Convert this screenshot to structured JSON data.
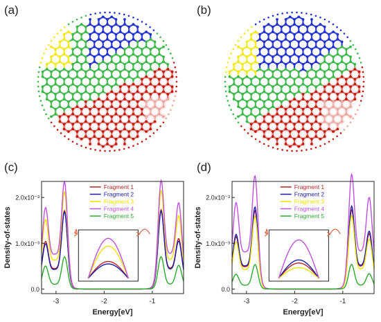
{
  "panels": {
    "a": "(a)",
    "b": "(b)",
    "c": "(c)",
    "d": "(d)"
  },
  "colors": {
    "fragment_1": "#b22222",
    "fragment_2": "#1a1aa8",
    "fragment_3": "#f0e000",
    "fragment_4": "#c050e0",
    "fragment_5": "#2aa82a",
    "carbon_blue": "#1f2fd0",
    "carbon_green": "#3cb84a",
    "carbon_red": "#c01a10",
    "carbon_yellow": "#f2e81a",
    "carbon_pink": "#e8a8a0"
  },
  "chart_data": [
    {
      "type": "line",
      "panel": "(c)",
      "xlabel": "Energy[eV]",
      "ylabel": "Density-of-states",
      "xlim": [
        -3.3,
        -0.35
      ],
      "ylim": [
        -0.0001,
        0.00235
      ],
      "xticks": [
        -3,
        -2,
        -1
      ],
      "xtick_labels": [
        "-3",
        "-2",
        "-1"
      ],
      "yticks": [
        0,
        0.001,
        0.002
      ],
      "ytick_labels": [
        "0.0",
        "1.0x10⁻³",
        "2.0x10⁻³"
      ],
      "legend_position": "top-right",
      "peaks_x": [
        -3.22,
        -2.82,
        -0.82,
        -0.45
      ],
      "series": [
        {
          "name": "Fragment 1",
          "peaks": [
            0.0008,
            0.00152,
            0.00152,
            0.0008
          ],
          "plateau": 0.00044,
          "inset_height": 0.55
        },
        {
          "name": "Fragment 2",
          "peaks": [
            0.00076,
            0.0015,
            0.0015,
            0.00076
          ],
          "plateau": 0.00042,
          "inset_height": 0.47
        },
        {
          "name": "Fragment 3",
          "peaks": [
            0.00118,
            0.00185,
            0.00185,
            0.00118
          ],
          "plateau": 0.00062,
          "inset_height": 1.05
        },
        {
          "name": "Fragment 4",
          "peaks": [
            0.00137,
            0.00201,
            0.00201,
            0.00137
          ],
          "plateau": 0.00075,
          "inset_height": 1.3
        },
        {
          "name": "Fragment 5",
          "peaks": [
            0.00045,
            0.00066,
            0.00066,
            0.00045
          ],
          "plateau": 0.0001,
          "inset_height": 0.0
        }
      ]
    },
    {
      "type": "line",
      "panel": "(d)",
      "xlabel": "Energy[eV]",
      "ylabel": "Density-of-states",
      "xlim": [
        -3.3,
        -0.35
      ],
      "ylim": [
        -0.0001,
        0.00235
      ],
      "xticks": [
        -3,
        -2,
        -1
      ],
      "xtick_labels": [
        "-3",
        "-2",
        "-1"
      ],
      "yticks": [
        0,
        0.001,
        0.002
      ],
      "ytick_labels": [
        "0.0",
        "1.0x10⁻³",
        "2.0x10⁻³"
      ],
      "legend_position": "top-right",
      "peaks_x": [
        -3.22,
        -2.82,
        -0.82,
        -0.45
      ],
      "series": [
        {
          "name": "Fragment 1",
          "peaks": [
            0.00088,
            0.0015,
            0.0015,
            0.00088
          ],
          "plateau": 0.00048,
          "inset_height": 0.5
        },
        {
          "name": "Fragment 2",
          "peaks": [
            0.00092,
            0.00157,
            0.00157,
            0.00092
          ],
          "plateau": 0.0005,
          "inset_height": 0.6
        },
        {
          "name": "Fragment 3",
          "peaks": [
            0.0008,
            0.0014,
            0.0014,
            0.0008
          ],
          "plateau": 0.00042,
          "inset_height": 0.35
        },
        {
          "name": "Fragment 4",
          "peaks": [
            0.00145,
            0.00212,
            0.00212,
            0.00145
          ],
          "plateau": 0.0008,
          "inset_height": 1.25
        },
        {
          "name": "Fragment 5",
          "peaks": [
            0.00028,
            0.0005,
            0.0005,
            0.00028
          ],
          "plateau": 8e-05,
          "inset_height": 0.0
        }
      ]
    }
  ]
}
